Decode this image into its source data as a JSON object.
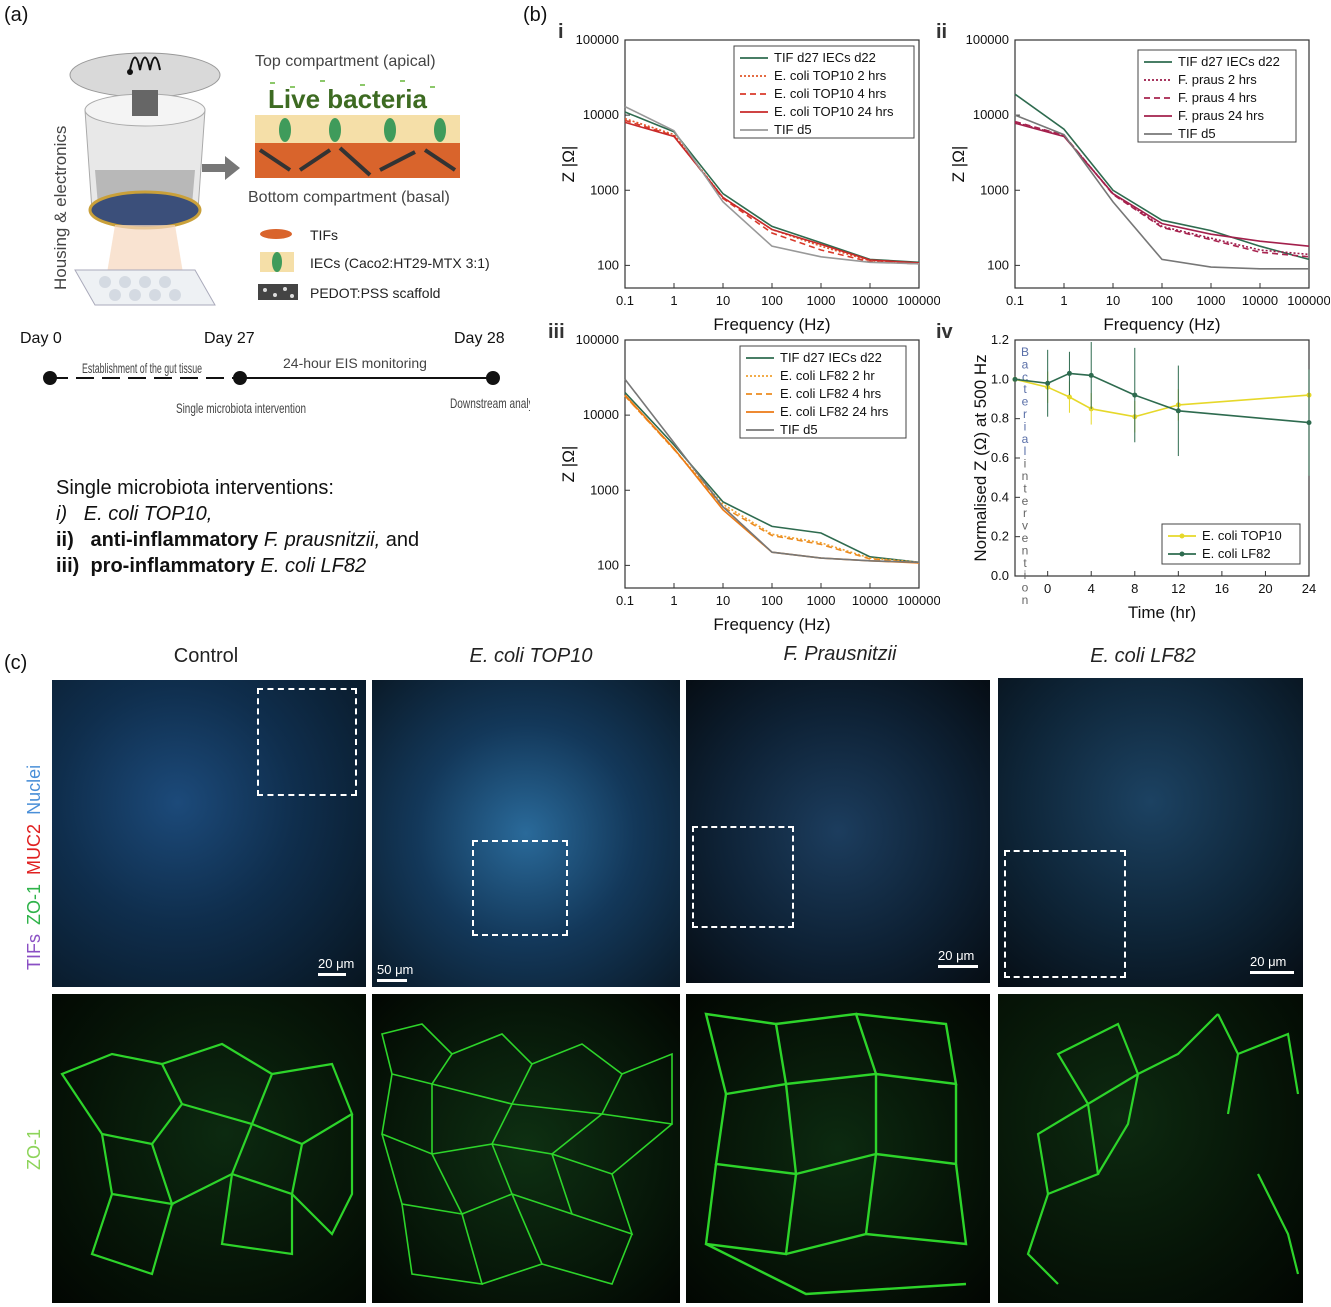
{
  "labels": {
    "a": "(a)",
    "b": "(b)",
    "c": "(c)",
    "i": "i",
    "ii": "ii",
    "iii": "iii",
    "iv": "iv"
  },
  "schematic": {
    "housing_label": "Housing & electronics",
    "top_compartment": "Top compartment (apical)",
    "live_bacteria": "Live bacteria",
    "bottom_compartment": "Bottom compartment (basal)",
    "legend": [
      {
        "label": "TIFs"
      },
      {
        "label": "IECs (Caco2:HT29-MTX 3:1)"
      },
      {
        "label": "PEDOT:PSS scaffold"
      }
    ]
  },
  "timeline": {
    "day0": "Day 0",
    "day27": "Day 27",
    "day28": "Day 28",
    "establishment": "Establishment of the gut tissue",
    "eis": "24-hour EIS monitoring",
    "single_intervention": "Single microbiota intervention",
    "downstream": "Downstream analysis"
  },
  "interventions": {
    "heading": "Single microbiota interventions:",
    "i_num": "i)",
    "i_text": "E. coli TOP10,",
    "ii_num": "ii)",
    "ii_bold": "anti-inflammatory",
    "ii_species": "F. prausnitzii,",
    "ii_tail": "and",
    "iii_num": "iii)",
    "iii_bold": "pro-inflammatory",
    "iii_species": "E. coli LF82"
  },
  "chart_data": [
    {
      "id": "i",
      "type": "line",
      "log_x": true,
      "log_y": true,
      "xlabel": "Frequency (Hz)",
      "ylabel": "Z |Ω|",
      "xlim": [
        0.1,
        100000
      ],
      "ylim": [
        50,
        100000
      ],
      "x_ticks": [
        "0.1",
        "1",
        "10",
        "100",
        "1000",
        "10000",
        "100000"
      ],
      "y_ticks": [
        "100",
        "1000",
        "10000",
        "100000"
      ],
      "series": [
        {
          "name": "TIF d27 IECs d22",
          "color": "#2e6b4f",
          "dash": "",
          "x": [
            0.1,
            1,
            10,
            100,
            1000,
            10000,
            100000
          ],
          "y": [
            11000,
            6000,
            900,
            330,
            200,
            120,
            110
          ]
        },
        {
          "name": "E. coli TOP10 2 hrs",
          "color": "#e0582a",
          "dash": "2,2",
          "x": [
            0.1,
            1,
            10,
            100,
            1000,
            10000,
            100000
          ],
          "y": [
            9000,
            5500,
            800,
            300,
            180,
            115,
            105
          ]
        },
        {
          "name": "E. coli TOP10 4 hrs",
          "color": "#d93a2b",
          "dash": "6,4",
          "x": [
            0.1,
            1,
            10,
            100,
            1000,
            10000,
            100000
          ],
          "y": [
            8500,
            5300,
            780,
            270,
            160,
            112,
            105
          ]
        },
        {
          "name": "E. coli TOP10 24 hrs",
          "color": "#c82a2a",
          "dash": "",
          "x": [
            0.1,
            1,
            10,
            100,
            1000,
            10000,
            100000
          ],
          "y": [
            8000,
            5200,
            800,
            300,
            190,
            118,
            108
          ]
        },
        {
          "name": "TIF d5",
          "color": "#999999",
          "dash": "",
          "x": [
            0.1,
            1,
            10,
            100,
            1000,
            10000,
            100000
          ],
          "y": [
            13000,
            6200,
            700,
            180,
            130,
            110,
            105
          ]
        }
      ]
    },
    {
      "id": "ii",
      "type": "line",
      "log_x": true,
      "log_y": true,
      "xlabel": "Frequency (Hz)",
      "ylabel": "Z |Ω|",
      "xlim": [
        0.1,
        100000
      ],
      "ylim": [
        50,
        100000
      ],
      "x_ticks": [
        "0.1",
        "1",
        "10",
        "100",
        "1000",
        "10000",
        "100000"
      ],
      "y_ticks": [
        "100",
        "1000",
        "10000",
        "100000"
      ],
      "series": [
        {
          "name": "TIF d27 IECs d22",
          "color": "#2e6b4f",
          "dash": "",
          "x": [
            0.1,
            1,
            10,
            100,
            1000,
            10000,
            100000
          ],
          "y": [
            19000,
            6500,
            1000,
            400,
            290,
            180,
            120
          ]
        },
        {
          "name": "F. praus 2 hrs",
          "color": "#9c1a4a",
          "dash": "2,2",
          "x": [
            0.1,
            1,
            10,
            100,
            1000,
            10000,
            100000
          ],
          "y": [
            8000,
            5300,
            900,
            330,
            230,
            160,
            140
          ]
        },
        {
          "name": "F. praus 4 hrs",
          "color": "#a8244f",
          "dash": "6,4",
          "x": [
            0.1,
            1,
            10,
            100,
            1000,
            10000,
            100000
          ],
          "y": [
            8200,
            5400,
            880,
            320,
            220,
            150,
            130
          ]
        },
        {
          "name": "F. praus 24 hrs",
          "color": "#a3204c",
          "dash": "",
          "x": [
            0.1,
            1,
            10,
            100,
            1000,
            10000,
            100000
          ],
          "y": [
            7800,
            5200,
            900,
            360,
            260,
            210,
            180
          ]
        },
        {
          "name": "TIF d5",
          "color": "#777777",
          "dash": "",
          "x": [
            0.1,
            1,
            10,
            100,
            1000,
            10000,
            100000
          ],
          "y": [
            10000,
            5500,
            700,
            120,
            95,
            90,
            90
          ]
        }
      ]
    },
    {
      "id": "iii",
      "type": "line",
      "log_x": true,
      "log_y": true,
      "xlabel": "Frequency (Hz)",
      "ylabel": "Z |Ω|",
      "xlim": [
        0.1,
        100000
      ],
      "ylim": [
        50,
        100000
      ],
      "x_ticks": [
        "0.1",
        "1",
        "10",
        "100",
        "1000",
        "10000",
        "100000"
      ],
      "y_ticks": [
        "100",
        "1000",
        "10000",
        "100000"
      ],
      "series": [
        {
          "name": "TIF d27 IECs d22",
          "color": "#2e6b4f",
          "dash": "",
          "x": [
            0.1,
            1,
            10,
            100,
            1000,
            10000,
            100000
          ],
          "y": [
            20000,
            4000,
            700,
            330,
            270,
            130,
            110
          ]
        },
        {
          "name": "E. coli LF82 2 hr",
          "color": "#f0a030",
          "dash": "2,2",
          "x": [
            0.1,
            1,
            10,
            100,
            1000,
            10000,
            100000
          ],
          "y": [
            18000,
            3500,
            650,
            260,
            200,
            125,
            110
          ]
        },
        {
          "name": "E. coli LF82 4 hrs",
          "color": "#ec8c20",
          "dash": "6,4",
          "x": [
            0.1,
            1,
            10,
            100,
            1000,
            10000,
            100000
          ],
          "y": [
            18000,
            3500,
            600,
            250,
            190,
            122,
            108
          ]
        },
        {
          "name": "E. coli LF82 24 hrs",
          "color": "#ec7a14",
          "dash": "",
          "x": [
            0.1,
            1,
            10,
            100,
            1000,
            10000,
            100000
          ],
          "y": [
            18500,
            3600,
            550,
            150,
            125,
            115,
            108
          ]
        },
        {
          "name": "TIF d5",
          "color": "#777777",
          "dash": "",
          "x": [
            0.1,
            1,
            10,
            100,
            1000,
            10000,
            100000
          ],
          "y": [
            30000,
            4300,
            600,
            150,
            125,
            115,
            110
          ]
        }
      ]
    },
    {
      "id": "iv",
      "type": "line",
      "xlabel": "Time (hr)",
      "ylabel": "Normalised Z (Ω) at 500 Hz",
      "xlim": [
        -3,
        24
      ],
      "ylim": [
        0,
        1.2
      ],
      "x_ticks": [
        "0",
        "4",
        "8",
        "12",
        "16",
        "20",
        "24"
      ],
      "y_ticks": [
        "0.0",
        "0.2",
        "0.4",
        "0.6",
        "0.8",
        "1.0",
        "1.2"
      ],
      "annotation": "Bacterial intervention",
      "series": [
        {
          "name": "E. coli TOP10",
          "color": "#e6d82a",
          "x": [
            -3,
            0,
            2,
            4,
            8,
            12,
            24
          ],
          "y": [
            1.0,
            0.96,
            0.91,
            0.85,
            0.81,
            0.87,
            0.92
          ],
          "err": [
            0,
            0.08,
            0.08,
            0.08,
            0.08,
            0.08,
            0.1
          ]
        },
        {
          "name": "E. coli LF82",
          "color": "#2e6b4f",
          "x": [
            -3,
            0,
            2,
            4,
            8,
            12,
            24
          ],
          "y": [
            1.0,
            0.98,
            1.03,
            1.02,
            0.92,
            0.84,
            0.78
          ],
          "err": [
            0,
            0.17,
            0.11,
            0.17,
            0.24,
            0.23,
            0.27
          ]
        }
      ]
    }
  ],
  "microscopy": {
    "columns": [
      "Control",
      "E. coli TOP10",
      "F. Prausnitzii",
      "E. coli LF82"
    ],
    "row_label_tifs": "TIFs",
    "row_label_zo1": "ZO-1",
    "row_label_muc2": "MUC2",
    "row_label_nuclei": "Nuclei",
    "row2_label": "ZO-1",
    "scale_20": "20 μm",
    "scale_50": "50 μm"
  }
}
